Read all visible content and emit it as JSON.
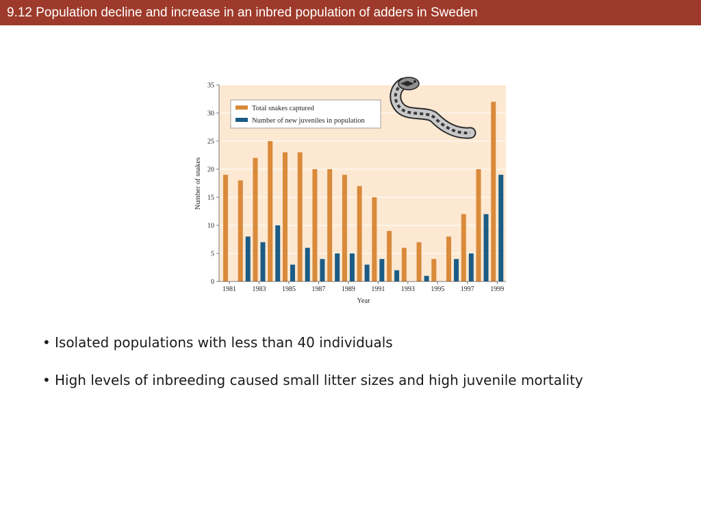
{
  "slide": {
    "title": "9.12  Population decline and increase in an inbred population of adders in Sweden"
  },
  "bullets": [
    "Isolated populations with less than 40 individuals",
    "High levels of inbreeding caused small litter sizes and high juvenile mortality"
  ],
  "colors": {
    "title_bar": "#9e3a2b",
    "plot_bg": "#fde8d2",
    "series_total": "#d98a3a",
    "series_juveniles": "#1a5c86"
  },
  "chart_data": {
    "type": "bar",
    "xlabel": "Year",
    "ylabel": "Number of snakes",
    "ylim": [
      0,
      35
    ],
    "yticks": [
      0,
      5,
      10,
      15,
      20,
      25,
      30,
      35
    ],
    "grid": true,
    "legend_position": "top-left",
    "years": [
      1981,
      1982,
      1983,
      1984,
      1985,
      1986,
      1987,
      1988,
      1989,
      1990,
      1991,
      1992,
      1993,
      1994,
      1995,
      1996,
      1997,
      1998,
      1999
    ],
    "xtick_labels": [
      "1981",
      "1983",
      "1985",
      "1987",
      "1989",
      "1991",
      "1993",
      "1995",
      "1997",
      "1999"
    ],
    "series": [
      {
        "name": "Total snakes captured",
        "values": [
          19,
          18,
          22,
          25,
          23,
          23,
          20,
          20,
          19,
          17,
          15,
          9,
          6,
          7,
          4,
          8,
          12,
          20,
          32
        ]
      },
      {
        "name": "Number of new juveniles in population",
        "values": [
          0,
          8,
          7,
          10,
          3,
          6,
          4,
          5,
          5,
          3,
          4,
          2,
          0,
          1,
          0,
          4,
          5,
          12,
          19
        ]
      }
    ]
  }
}
